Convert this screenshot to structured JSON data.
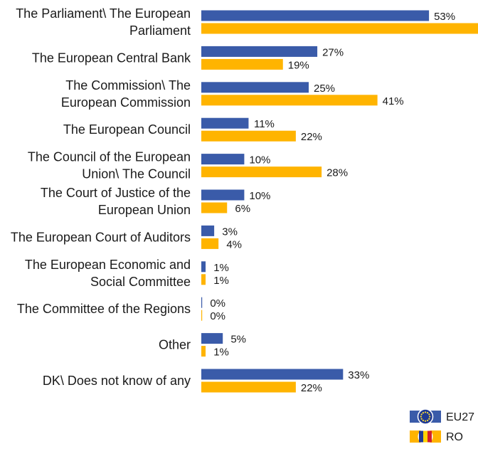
{
  "colors": {
    "eu27": "#3A5BA9",
    "ro": "#FFB400"
  },
  "legend": {
    "eu27_label": "EU27",
    "ro_label": "RO",
    "eu27_icon": "eu-flag-icon",
    "ro_icon": "romania-flag-icon"
  },
  "chart_data": {
    "type": "bar",
    "orientation": "horizontal",
    "categories": [
      [
        "The Parliament\\ The European",
        "Parliament"
      ],
      [
        "The European Central Bank"
      ],
      [
        "The Commission\\ The",
        "European Commission"
      ],
      [
        "The European Council"
      ],
      [
        "The Council of the European",
        "Union\\ The Council"
      ],
      [
        "The Court of Justice of the",
        "European Union"
      ],
      [
        "The European Court of Auditors"
      ],
      [
        "The European Economic and",
        "Social Committee"
      ],
      [
        "The Committee of the Regions"
      ],
      [
        "Other"
      ],
      [
        "DK\\ Does not know of any"
      ]
    ],
    "series": [
      {
        "name": "EU27",
        "values": [
          53,
          27,
          25,
          11,
          10,
          10,
          3,
          1,
          0,
          5,
          33
        ]
      },
      {
        "name": "RO",
        "values": [
          69,
          19,
          41,
          22,
          28,
          6,
          4,
          1,
          0,
          1,
          22
        ]
      }
    ],
    "value_suffix": "%",
    "xlim": [
      0,
      100
    ],
    "grid": false,
    "legend_position": "bottom-right"
  }
}
